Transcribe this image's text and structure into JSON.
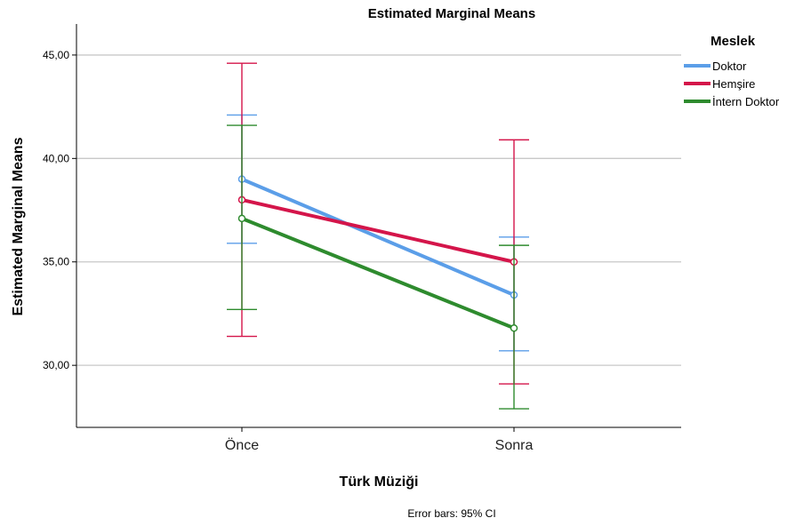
{
  "chart_data": {
    "type": "line",
    "title": "Estimated Marginal Means",
    "xlabel": "Türk Müziği",
    "ylabel": "Estimated Marginal Means",
    "categories": [
      "Önce",
      "Sonra"
    ],
    "ylim": [
      27,
      46.5
    ],
    "yticks": [
      30,
      35,
      40,
      45
    ],
    "ytick_labels": [
      "30,00",
      "35,00",
      "40,00",
      "45,00"
    ],
    "grid": true,
    "legend_title": "Meslek",
    "legend_position": "top-right",
    "footnote": "Error bars: 95% CI",
    "series": [
      {
        "name": "Doktor",
        "color": "#5b9ee8",
        "values": [
          39.0,
          33.4
        ],
        "ci_low": [
          35.9,
          30.7
        ],
        "ci_high": [
          42.1,
          36.2
        ]
      },
      {
        "name": "Hemşire",
        "color": "#d4154a",
        "values": [
          38.0,
          35.0
        ],
        "ci_low": [
          31.4,
          29.1
        ],
        "ci_high": [
          44.6,
          40.9
        ]
      },
      {
        "name": "İntern Doktor",
        "color": "#2e8b2e",
        "values": [
          37.1,
          31.8
        ],
        "ci_low": [
          32.7,
          27.9
        ],
        "ci_high": [
          41.6,
          35.8
        ]
      }
    ]
  }
}
